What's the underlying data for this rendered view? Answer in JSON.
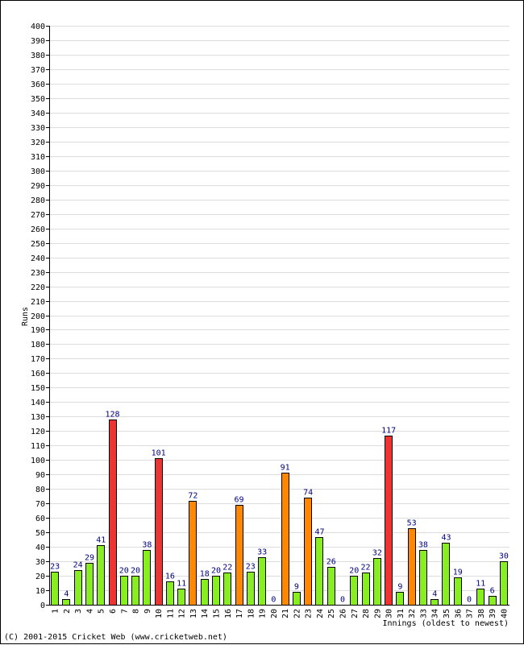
{
  "chart_data": {
    "type": "bar",
    "ylabel": "Runs",
    "xlabel": "Innings (oldest to newest)",
    "ylim": [
      0,
      400
    ],
    "ytick_step": 10,
    "grid": true,
    "categories": [
      "1",
      "2",
      "3",
      "4",
      "5",
      "6",
      "7",
      "8",
      "9",
      "10",
      "11",
      "12",
      "13",
      "14",
      "15",
      "16",
      "17",
      "18",
      "19",
      "20",
      "21",
      "22",
      "23",
      "24",
      "25",
      "26",
      "27",
      "28",
      "29",
      "30",
      "31",
      "32",
      "33",
      "34",
      "35",
      "36",
      "37",
      "38",
      "39",
      "40"
    ],
    "values": [
      23,
      4,
      24,
      29,
      41,
      128,
      20,
      20,
      38,
      101,
      16,
      11,
      72,
      18,
      20,
      22,
      69,
      23,
      33,
      0,
      91,
      9,
      74,
      47,
      26,
      0,
      20,
      22,
      32,
      117,
      9,
      53,
      38,
      4,
      43,
      19,
      0,
      11,
      6,
      30
    ],
    "colors": {
      "under_50": "#88ee22",
      "fifty_plus": "#ff8800",
      "hundred_plus": "#ee3333",
      "value_label": "#000080"
    }
  },
  "footer": {
    "copyright": "(C) 2001-2015 Cricket Web (www.cricketweb.net)"
  }
}
